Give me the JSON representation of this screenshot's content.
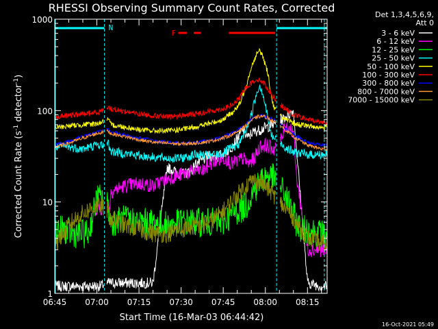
{
  "chart_data": {
    "type": "line",
    "title": "RHESSI Observing Summary Count Rates, Corrected",
    "xlabel": "Start Time (16-Mar-03 06:44:42)",
    "ylabel_main": "Corrected Count Rate (s",
    "ylabel_sup1": "-1",
    "ylabel_mid": " detector",
    "ylabel_sup2": "-1",
    "ylabel_end": ")",
    "yscale": "log",
    "ylim": [
      1,
      1000
    ],
    "xlim_minutes": [
      0,
      97
    ],
    "x_unit": "minutes after 06:45",
    "x_tick_labels": [
      "06:45",
      "07:00",
      "07:15",
      "07:30",
      "07:45",
      "08:00",
      "08:15"
    ],
    "y_tick_labels": [
      "1",
      "10",
      "100",
      "1000"
    ],
    "legend_header": [
      "Det 1,3,4,5,6,9,",
      "Att 0"
    ],
    "legend_position": "right",
    "series": [
      {
        "name": "3 - 6 keV",
        "color": "#ffffff",
        "x": [
          0,
          5,
          10,
          15,
          16,
          19,
          20,
          25,
          30,
          35,
          40,
          45,
          49,
          50,
          53,
          55,
          58,
          61,
          63,
          65,
          67,
          69,
          70,
          72,
          75,
          80,
          85,
          90,
          95,
          97
        ],
        "values": [
          1.2,
          1.2,
          1.2,
          1.2,
          1.2,
          1.3,
          1.3,
          1.3,
          1.3,
          1.3,
          24,
          20,
          22,
          26,
          29,
          32,
          31,
          35,
          40,
          50,
          62,
          50,
          57,
          60,
          65,
          75,
          100,
          1.3,
          1.2,
          1.2
        ]
      },
      {
        "name": "6 - 12 keV",
        "color": "#ff00ff",
        "x": [
          14,
          17,
          19,
          19.5,
          20,
          25,
          30,
          35,
          40,
          45,
          50,
          53,
          55,
          58,
          61,
          63,
          65,
          67,
          69,
          71,
          73,
          75,
          78,
          81,
          82,
          85,
          86,
          90,
          95,
          97
        ],
        "values": [
          8.5,
          8.5,
          9,
          8,
          13,
          15,
          16,
          15,
          18,
          20,
          22,
          22,
          26,
          29,
          30,
          26,
          28,
          30,
          26,
          30,
          40,
          42,
          38,
          50,
          70,
          60,
          20,
          3,
          3,
          3
        ]
      },
      {
        "name": "12 - 25 keV",
        "color": "#00ff00",
        "x": [
          0,
          3,
          6,
          10,
          12,
          15,
          17,
          19,
          20,
          25,
          30,
          35,
          40,
          45,
          50,
          55,
          60,
          62,
          65,
          68,
          70,
          72,
          74,
          76,
          78,
          80,
          82,
          84,
          86,
          88,
          90,
          95,
          97
        ],
        "values": [
          5,
          5,
          4.5,
          4.5,
          4.5,
          11,
          11,
          9,
          6,
          6.5,
          6,
          6,
          5.5,
          6,
          6,
          6,
          6,
          7,
          8,
          9,
          12,
          15,
          18,
          20,
          18,
          15,
          12,
          9,
          6,
          5,
          5,
          4.5,
          4.5
        ]
      },
      {
        "name": "25 - 50 keV",
        "color": "#00ffff",
        "x": [
          0,
          5,
          10,
          15,
          17,
          19,
          20,
          25,
          30,
          35,
          40,
          45,
          50,
          55,
          60,
          62,
          64,
          66,
          68,
          70,
          72,
          73,
          74,
          76,
          77,
          78,
          80,
          82,
          85,
          90,
          95,
          97
        ],
        "values": [
          40,
          40,
          38,
          42,
          42,
          44,
          36,
          34,
          32,
          31,
          30,
          30,
          33,
          32,
          34,
          38,
          40,
          45,
          60,
          90,
          160,
          190,
          160,
          80,
          55,
          50,
          45,
          40,
          35,
          33,
          33,
          33
        ]
      },
      {
        "name": "50 - 100 keV",
        "color": "#ffff00",
        "x": [
          0,
          5,
          10,
          15,
          17,
          19,
          20,
          25,
          30,
          35,
          40,
          45,
          50,
          55,
          60,
          62,
          64,
          66,
          68,
          70,
          72,
          73,
          74,
          76,
          77,
          78,
          80,
          82,
          85,
          90,
          95,
          97
        ],
        "values": [
          65,
          68,
          70,
          72,
          75,
          80,
          70,
          66,
          62,
          60,
          60,
          62,
          66,
          72,
          80,
          90,
          100,
          120,
          180,
          300,
          420,
          450,
          400,
          250,
          150,
          110,
          90,
          80,
          72,
          68,
          65,
          65
        ]
      },
      {
        "name": "100 - 300 keV",
        "color": "#ff0000",
        "x": [
          0,
          5,
          10,
          15,
          17,
          19,
          20,
          25,
          30,
          35,
          40,
          45,
          50,
          55,
          60,
          62,
          64,
          66,
          68,
          70,
          72,
          74,
          76,
          78,
          80,
          82,
          85,
          90,
          95,
          97
        ],
        "values": [
          85,
          88,
          92,
          95,
          100,
          110,
          105,
          98,
          92,
          88,
          85,
          88,
          92,
          98,
          105,
          110,
          120,
          140,
          180,
          200,
          220,
          210,
          170,
          140,
          120,
          105,
          90,
          80,
          75,
          75
        ]
      },
      {
        "name": "300 - 800 keV",
        "color": "#0000ff",
        "x": [
          0,
          5,
          10,
          15,
          19,
          20,
          25,
          30,
          35,
          40,
          45,
          50,
          55,
          60,
          64,
          68,
          70,
          72,
          74,
          76,
          78,
          80,
          82,
          85,
          90,
          95,
          97
        ],
        "values": [
          42,
          46,
          52,
          58,
          62,
          58,
          54,
          50,
          47,
          45,
          44,
          45,
          47,
          52,
          58,
          70,
          80,
          86,
          88,
          84,
          78,
          72,
          64,
          55,
          45,
          42,
          41
        ]
      },
      {
        "name": "800 - 7000 keV",
        "color": "#ff9933",
        "x": [
          0,
          5,
          10,
          15,
          19,
          20,
          25,
          30,
          35,
          40,
          45,
          50,
          55,
          60,
          64,
          68,
          70,
          72,
          74,
          76,
          78,
          80,
          82,
          85,
          90,
          95,
          97
        ],
        "values": [
          40,
          44,
          50,
          56,
          60,
          56,
          52,
          48,
          45,
          44,
          43,
          44,
          46,
          50,
          56,
          68,
          78,
          85,
          87,
          83,
          76,
          70,
          62,
          52,
          42,
          38,
          38
        ]
      },
      {
        "name": "7000 - 15000 keV",
        "color": "#888800",
        "x": [
          0,
          3,
          6,
          10,
          13,
          16,
          19,
          20,
          25,
          30,
          35,
          40,
          45,
          50,
          55,
          58,
          61,
          64,
          67,
          69,
          70,
          72,
          74,
          76,
          78,
          80,
          82,
          84,
          86,
          88,
          90,
          95,
          97
        ],
        "values": [
          3.5,
          4.5,
          6,
          7.5,
          8.5,
          9,
          8,
          6.5,
          5.5,
          5,
          4.5,
          4.5,
          5,
          5.5,
          6,
          7,
          8.5,
          11,
          14,
          16,
          17,
          17,
          16,
          14,
          12,
          10,
          8.5,
          7.5,
          6,
          5,
          4,
          3.5,
          3.5
        ]
      }
    ],
    "annotations": {
      "attenuator_line_color": "#00ffff",
      "night_label": "N",
      "flare_label": "F",
      "flare_color": "#ff0000",
      "attenuator_segments": [
        [
          0,
          17.7
        ],
        [
          79,
          97
        ]
      ],
      "attenuator_markers": [
        17.7,
        79,
        96
      ],
      "flare_segments": [
        [
          44,
          47
        ],
        [
          49.5,
          52
        ],
        [
          62,
          78.5
        ]
      ],
      "data_gaps": [
        [
          17.5,
          18.6
        ],
        [
          78.8,
          80.2
        ]
      ]
    }
  },
  "footer_timestamp": "16-Oct-2021 05:49"
}
